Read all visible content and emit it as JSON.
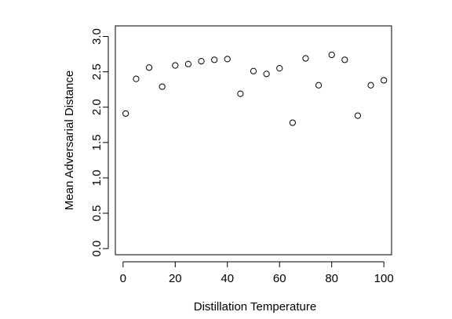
{
  "chart_data": {
    "type": "scatter",
    "title": "",
    "xlabel": "Distillation Temperature",
    "ylabel": "Mean Adversarial Distance",
    "xlim": [
      -2.96,
      102.96
    ],
    "ylim": [
      -0.087,
      3.15
    ],
    "x_ticks": [
      0,
      20,
      40,
      60,
      80,
      100
    ],
    "y_ticks": [
      0.0,
      0.5,
      1.0,
      1.5,
      2.0,
      2.5,
      3.0
    ],
    "x_tick_labels": [
      "0",
      "20",
      "40",
      "60",
      "80",
      "100"
    ],
    "y_tick_labels": [
      "0.0",
      "0.5",
      "1.0",
      "1.5",
      "2.0",
      "2.5",
      "3.0"
    ],
    "grid": false,
    "series": [
      {
        "name": "",
        "points": [
          {
            "x": 1,
            "y": 1.91
          },
          {
            "x": 5,
            "y": 2.4
          },
          {
            "x": 10,
            "y": 2.56
          },
          {
            "x": 15,
            "y": 2.29
          },
          {
            "x": 20,
            "y": 2.59
          },
          {
            "x": 25,
            "y": 2.61
          },
          {
            "x": 30,
            "y": 2.65
          },
          {
            "x": 35,
            "y": 2.67
          },
          {
            "x": 40,
            "y": 2.68
          },
          {
            "x": 45,
            "y": 2.19
          },
          {
            "x": 50,
            "y": 2.51
          },
          {
            "x": 55,
            "y": 2.47
          },
          {
            "x": 60,
            "y": 2.55
          },
          {
            "x": 65,
            "y": 1.78
          },
          {
            "x": 70,
            "y": 2.69
          },
          {
            "x": 75,
            "y": 2.31
          },
          {
            "x": 80,
            "y": 2.74
          },
          {
            "x": 85,
            "y": 2.67
          },
          {
            "x": 90,
            "y": 1.88
          },
          {
            "x": 95,
            "y": 2.31
          },
          {
            "x": 100,
            "y": 2.38
          }
        ]
      }
    ]
  }
}
